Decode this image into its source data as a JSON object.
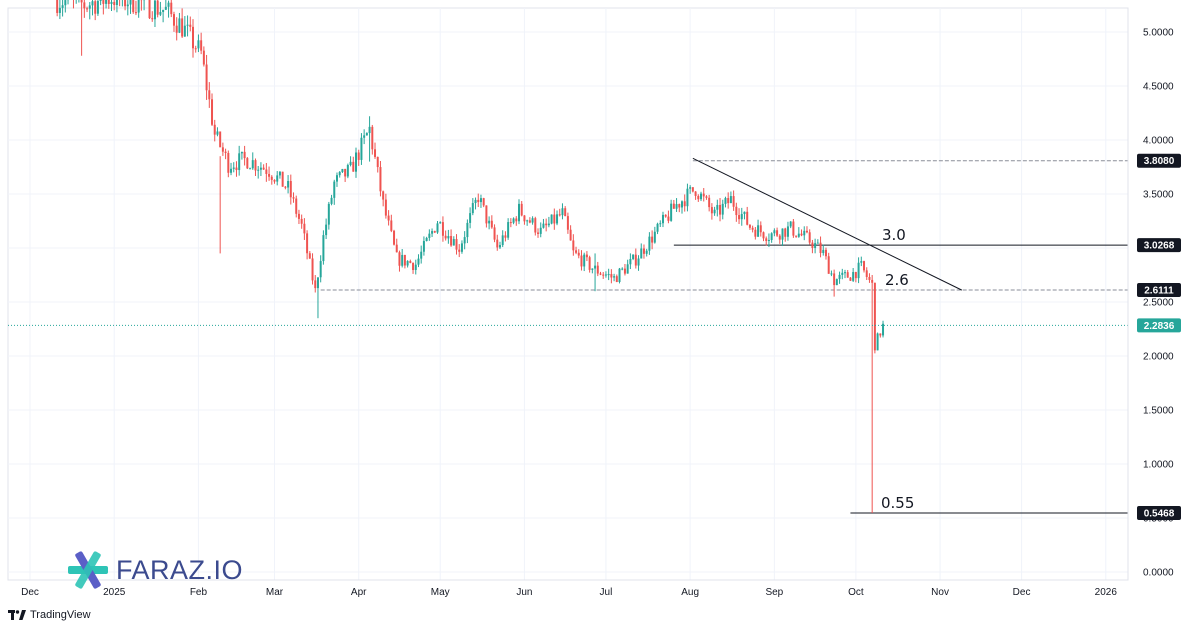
{
  "branding": {
    "logo_text": "FARAZ.IO",
    "logo_colors": [
      "#2ec4b6",
      "#5b5fc7"
    ],
    "platform": "TradingView"
  },
  "chart_data": {
    "type": "candlestick",
    "ylim": [
      0,
      5.2
    ],
    "y_ticks": [
      {
        "value": 0,
        "label": "0.0000"
      },
      {
        "value": 0.5,
        "label": "0.5000"
      },
      {
        "value": 1.0,
        "label": "1.0000"
      },
      {
        "value": 1.5,
        "label": "1.5000"
      },
      {
        "value": 2.0,
        "label": "2.0000"
      },
      {
        "value": 2.5,
        "label": "2.5000"
      },
      {
        "value": 3.0,
        "label": "3.0000"
      },
      {
        "value": 3.5,
        "label": "3.5000"
      },
      {
        "value": 4.0,
        "label": "4.0000"
      },
      {
        "value": 4.5,
        "label": "4.5000"
      },
      {
        "value": 5.0,
        "label": "5.0000"
      }
    ],
    "x_ticks": [
      {
        "label": "Dec",
        "day": 0
      },
      {
        "label": "2025",
        "day": 31
      },
      {
        "label": "Feb",
        "day": 62
      },
      {
        "label": "Mar",
        "day": 90
      },
      {
        "label": "Apr",
        "day": 121
      },
      {
        "label": "May",
        "day": 151
      },
      {
        "label": "Jun",
        "day": 182
      },
      {
        "label": "Jul",
        "day": 212
      },
      {
        "label": "Aug",
        "day": 243
      },
      {
        "label": "Sep",
        "day": 274
      },
      {
        "label": "Oct",
        "day": 304
      },
      {
        "label": "Nov",
        "day": 335
      },
      {
        "label": "Dec",
        "day": 365
      },
      {
        "label": "2026",
        "day": 396
      }
    ],
    "up_color": "#26a69a",
    "down_color": "#ef5350",
    "current_price": {
      "value": 2.2836,
      "label": "2.2836",
      "color": "#26a69a"
    },
    "horizontal_levels": [
      {
        "value": 3.808,
        "label": "3.8080",
        "start_day": 244,
        "style": "dashed",
        "tag_color": "#131722"
      },
      {
        "value": 3.0268,
        "label": "3.0268",
        "start_day": 237,
        "style": "solid",
        "tag_color": "#131722",
        "annotation": "3.0"
      },
      {
        "value": 2.6111,
        "label": "2.6111",
        "start_day": 107,
        "style": "dashed",
        "tag_color": "#131722",
        "annotation": "2.6"
      },
      {
        "value": 0.5468,
        "label": "0.5468",
        "start_day": 302,
        "style": "solid",
        "tag_color": "#131722",
        "annotation": "0.55"
      }
    ],
    "trendline": {
      "start": {
        "day": 244,
        "value": 3.83
      },
      "end": {
        "day": 343,
        "value": 2.61
      }
    },
    "anchors": [
      {
        "day": 10,
        "value": 5.3
      },
      {
        "day": 20,
        "value": 5.25
      },
      {
        "day": 30,
        "value": 5.32
      },
      {
        "day": 40,
        "value": 5.28
      },
      {
        "day": 50,
        "value": 5.2
      },
      {
        "day": 56,
        "value": 5.05
      },
      {
        "day": 63,
        "value": 4.8
      },
      {
        "day": 68,
        "value": 4.05
      },
      {
        "day": 73,
        "value": 3.78
      },
      {
        "day": 80,
        "value": 3.82
      },
      {
        "day": 88,
        "value": 3.72
      },
      {
        "day": 95,
        "value": 3.55
      },
      {
        "day": 100,
        "value": 3.2
      },
      {
        "day": 105,
        "value": 2.6
      },
      {
        "day": 108,
        "value": 3.1
      },
      {
        "day": 112,
        "value": 3.6
      },
      {
        "day": 118,
        "value": 3.72
      },
      {
        "day": 125,
        "value": 4.1
      },
      {
        "day": 130,
        "value": 3.4
      },
      {
        "day": 135,
        "value": 2.9
      },
      {
        "day": 142,
        "value": 2.85
      },
      {
        "day": 150,
        "value": 3.25
      },
      {
        "day": 158,
        "value": 3.0
      },
      {
        "day": 165,
        "value": 3.48
      },
      {
        "day": 172,
        "value": 3.0
      },
      {
        "day": 180,
        "value": 3.35
      },
      {
        "day": 188,
        "value": 3.15
      },
      {
        "day": 196,
        "value": 3.32
      },
      {
        "day": 200,
        "value": 2.95
      },
      {
        "day": 208,
        "value": 2.8
      },
      {
        "day": 215,
        "value": 2.72
      },
      {
        "day": 223,
        "value": 2.9
      },
      {
        "day": 232,
        "value": 3.2
      },
      {
        "day": 238,
        "value": 3.4
      },
      {
        "day": 245,
        "value": 3.55
      },
      {
        "day": 252,
        "value": 3.3
      },
      {
        "day": 258,
        "value": 3.45
      },
      {
        "day": 265,
        "value": 3.2
      },
      {
        "day": 272,
        "value": 3.12
      },
      {
        "day": 280,
        "value": 3.18
      },
      {
        "day": 288,
        "value": 3.05
      },
      {
        "day": 292,
        "value": 2.95
      },
      {
        "day": 296,
        "value": 2.7
      },
      {
        "day": 302,
        "value": 2.75
      },
      {
        "day": 306,
        "value": 2.82
      },
      {
        "day": 310,
        "value": 2.65
      },
      {
        "day": 311,
        "value": 2.1
      },
      {
        "day": 314,
        "value": 2.28
      }
    ],
    "wick_overrides": [
      {
        "day": 19,
        "high": 5.32,
        "low": 4.78
      },
      {
        "day": 70,
        "high": 3.85,
        "low": 2.95
      },
      {
        "day": 106,
        "high": 2.7,
        "low": 2.35
      },
      {
        "day": 125,
        "high": 4.22,
        "low": 3.8
      },
      {
        "day": 208,
        "high": 2.95,
        "low": 2.6
      },
      {
        "day": 296,
        "high": 2.8,
        "low": 2.55
      },
      {
        "day": 310,
        "high": 2.75,
        "low": 0.5468
      }
    ]
  }
}
